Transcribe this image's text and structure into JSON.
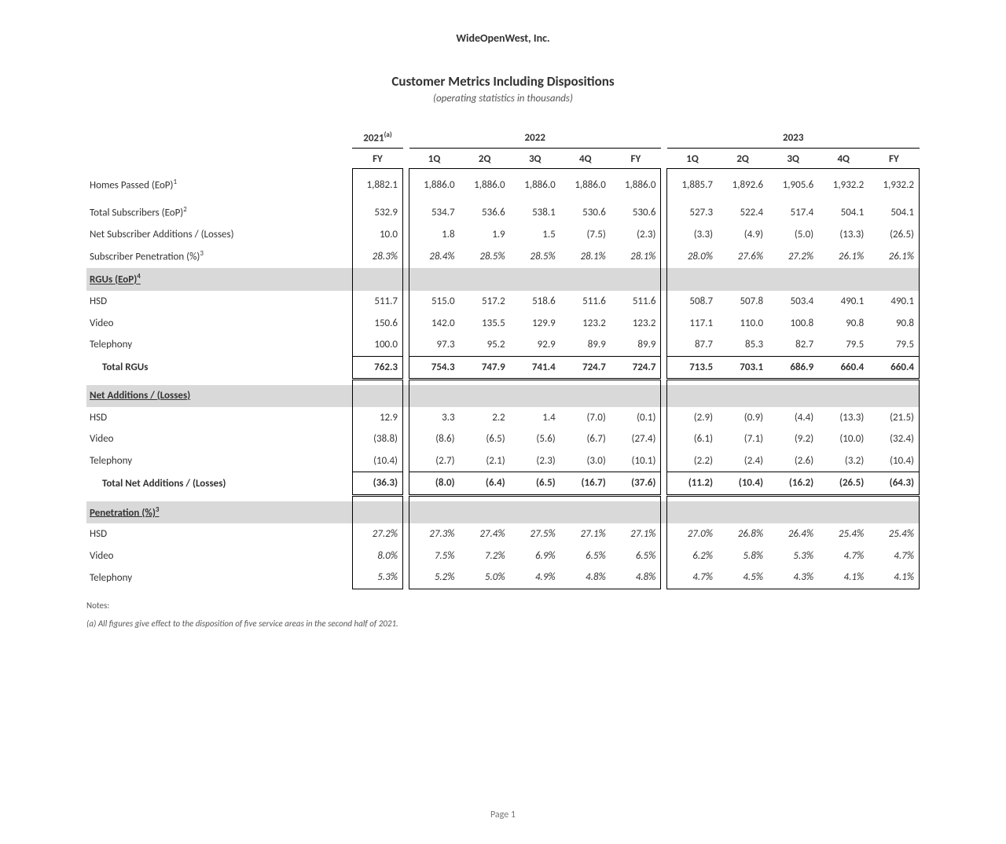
{
  "company": "WideOpenWest, Inc.",
  "title": "Customer Metrics Including Dispositions",
  "subtitle": "(operating statistics in thousands)",
  "years": {
    "y2021": "2021",
    "y2021_sup": "(a)",
    "y2022": "2022",
    "y2023": "2023"
  },
  "periods": [
    "FY",
    "1Q",
    "2Q",
    "3Q",
    "4Q",
    "FY",
    "1Q",
    "2Q",
    "3Q",
    "4Q",
    "FY"
  ],
  "rows": {
    "homes_passed": {
      "label": "Homes Passed (EoP)",
      "sup": "1",
      "vals": [
        "1,882.1",
        "1,886.0",
        "1,886.0",
        "1,886.0",
        "1,886.0",
        "1,886.0",
        "1,885.7",
        "1,892.6",
        "1,905.6",
        "1,932.2",
        "1,932.2"
      ]
    },
    "total_subs": {
      "label": "Total Subscribers (EoP)",
      "sup": "2",
      "vals": [
        "532.9",
        "534.7",
        "536.6",
        "538.1",
        "530.6",
        "530.6",
        "527.3",
        "522.4",
        "517.4",
        "504.1",
        "504.1"
      ]
    },
    "net_sub_add": {
      "label": "Net Subscriber Additions / (Losses)",
      "vals": [
        "10.0",
        "1.8",
        "1.9",
        "1.5",
        "(7.5)",
        "(2.3)",
        "(3.3)",
        "(4.9)",
        "(5.0)",
        "(13.3)",
        "(26.5)"
      ]
    },
    "sub_pen": {
      "label": "Subscriber Penetration (%)",
      "sup": "3",
      "italic": true,
      "vals": [
        "28.3%",
        "28.4%",
        "28.5%",
        "28.5%",
        "28.1%",
        "28.1%",
        "28.0%",
        "27.6%",
        "27.2%",
        "26.1%",
        "26.1%"
      ]
    },
    "sec_rgus": {
      "label": "RGUs (EoP)",
      "sup": "4"
    },
    "hsd": {
      "label": "HSD",
      "vals": [
        "511.7",
        "515.0",
        "517.2",
        "518.6",
        "511.6",
        "511.6",
        "508.7",
        "507.8",
        "503.4",
        "490.1",
        "490.1"
      ]
    },
    "video": {
      "label": "Video",
      "vals": [
        "150.6",
        "142.0",
        "135.5",
        "129.9",
        "123.2",
        "123.2",
        "117.1",
        "110.0",
        "100.8",
        "90.8",
        "90.8"
      ]
    },
    "tel": {
      "label": "Telephony",
      "vals": [
        "100.0",
        "97.3",
        "95.2",
        "92.9",
        "89.9",
        "89.9",
        "87.7",
        "85.3",
        "82.7",
        "79.5",
        "79.5"
      ]
    },
    "total_rgus": {
      "label": "Total RGUs",
      "vals": [
        "762.3",
        "754.3",
        "747.9",
        "741.4",
        "724.7",
        "724.7",
        "713.5",
        "703.1",
        "686.9",
        "660.4",
        "660.4"
      ]
    },
    "sec_net": {
      "label": "Net Additions / (Losses)"
    },
    "n_hsd": {
      "label": "HSD",
      "vals": [
        "12.9",
        "3.3",
        "2.2",
        "1.4",
        "(7.0)",
        "(0.1)",
        "(2.9)",
        "(0.9)",
        "(4.4)",
        "(13.3)",
        "(21.5)"
      ]
    },
    "n_video": {
      "label": "Video",
      "vals": [
        "(38.8)",
        "(8.6)",
        "(6.5)",
        "(5.6)",
        "(6.7)",
        "(27.4)",
        "(6.1)",
        "(7.1)",
        "(9.2)",
        "(10.0)",
        "(32.4)"
      ]
    },
    "n_tel": {
      "label": "Telephony",
      "vals": [
        "(10.4)",
        "(2.7)",
        "(2.1)",
        "(2.3)",
        "(3.0)",
        "(10.1)",
        "(2.2)",
        "(2.4)",
        "(2.6)",
        "(3.2)",
        "(10.4)"
      ]
    },
    "total_net": {
      "label": "Total Net Additions / (Losses)",
      "vals": [
        "(36.3)",
        "(8.0)",
        "(6.4)",
        "(6.5)",
        "(16.7)",
        "(37.6)",
        "(11.2)",
        "(10.4)",
        "(16.2)",
        "(26.5)",
        "(64.3)"
      ]
    },
    "sec_pen": {
      "label": "Penetration (%)",
      "sup": "3"
    },
    "p_hsd": {
      "label": "HSD",
      "italic": true,
      "vals": [
        "27.2%",
        "27.3%",
        "27.4%",
        "27.5%",
        "27.1%",
        "27.1%",
        "27.0%",
        "26.8%",
        "26.4%",
        "25.4%",
        "25.4%"
      ]
    },
    "p_video": {
      "label": "Video",
      "italic": true,
      "vals": [
        "8.0%",
        "7.5%",
        "7.2%",
        "6.9%",
        "6.5%",
        "6.5%",
        "6.2%",
        "5.8%",
        "5.3%",
        "4.7%",
        "4.7%"
      ]
    },
    "p_tel": {
      "label": "Telephony",
      "italic": true,
      "vals": [
        "5.3%",
        "5.2%",
        "5.0%",
        "4.9%",
        "4.8%",
        "4.8%",
        "4.7%",
        "4.5%",
        "4.3%",
        "4.1%",
        "4.1%"
      ]
    }
  },
  "notes_label": "Notes:",
  "note_a": "(a) All figures give effect to the disposition of five service areas in the second half of 2021.",
  "page": "Page 1"
}
